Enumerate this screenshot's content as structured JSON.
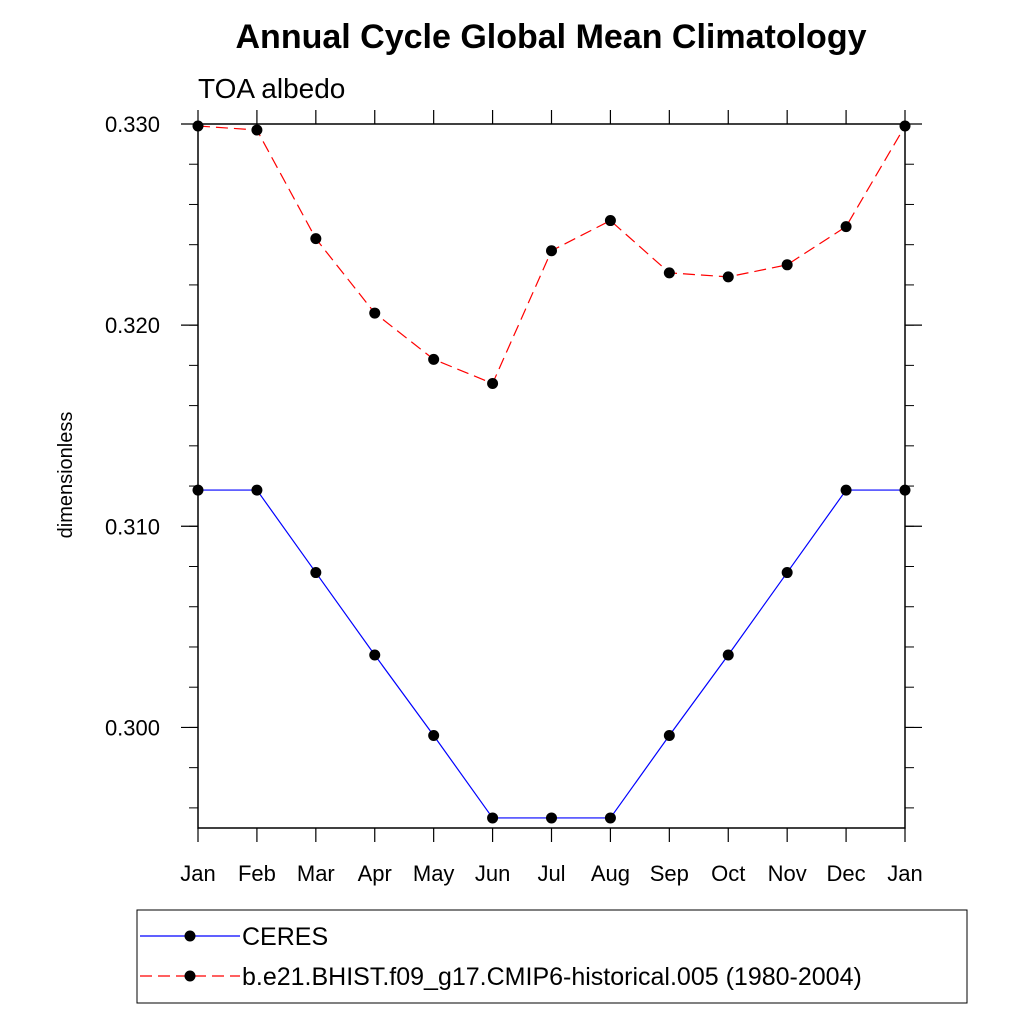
{
  "chart_data": {
    "type": "line",
    "title": "Annual Cycle Global Mean Climatology",
    "subtitle": "TOA albedo",
    "xlabel": "",
    "ylabel": "dimensionless",
    "categories": [
      "Jan",
      "Feb",
      "Mar",
      "Apr",
      "May",
      "Jun",
      "Jul",
      "Aug",
      "Sep",
      "Oct",
      "Nov",
      "Dec",
      "Jan"
    ],
    "ylim": [
      0.295,
      0.33
    ],
    "yticks": [
      "0.300",
      "0.310",
      "0.320",
      "0.330"
    ],
    "legend_position": "bottom",
    "series": [
      {
        "name": "CERES",
        "color": "#0000ff",
        "line_style": "solid",
        "values": [
          0.3118,
          0.3118,
          0.3077,
          0.3036,
          0.2996,
          0.2955,
          0.2955,
          0.2955,
          0.2996,
          0.3036,
          0.3077,
          0.3118,
          0.3118
        ]
      },
      {
        "name": "b.e21.BHIST.f09_g17.CMIP6-historical.005 (1980-2004)",
        "color": "#ff0000",
        "line_style": "dashed",
        "values": [
          0.3299,
          0.3297,
          0.3243,
          0.3206,
          0.3183,
          0.3171,
          0.3237,
          0.3252,
          0.3226,
          0.3224,
          0.323,
          0.3249,
          0.3299
        ]
      }
    ]
  }
}
